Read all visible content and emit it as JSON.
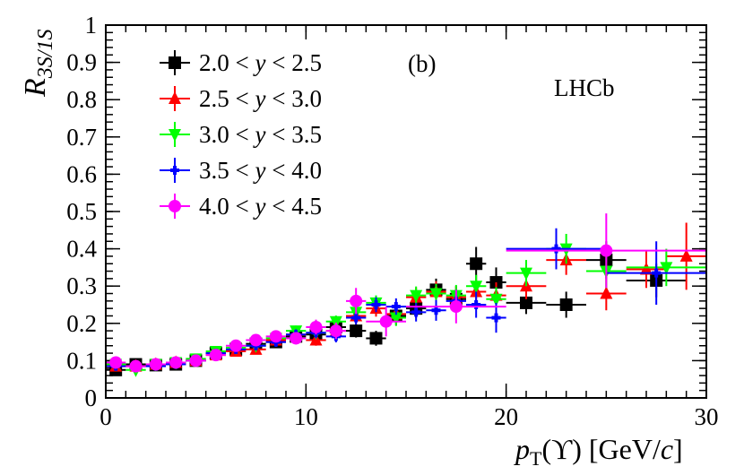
{
  "chart_data": {
    "type": "scatter",
    "panel_label": "(b)",
    "experiment": "LHCb",
    "xlabel": {
      "base": "p",
      "sub": "T",
      "rest": "(ϒ) [GeV/",
      "unit_italic": "c",
      "close": "]"
    },
    "ylabel": {
      "base": "R",
      "sub": "3S/1S"
    },
    "xlim": [
      0,
      30
    ],
    "ylim": [
      0,
      1
    ],
    "x_ticks": [
      "0",
      "10",
      "20",
      "30"
    ],
    "y_ticks": [
      "0",
      "0.1",
      "0.2",
      "0.3",
      "0.4",
      "0.5",
      "0.6",
      "0.7",
      "0.8",
      "0.9",
      "1"
    ],
    "series": [
      {
        "name": "2.0 < y < 2.5",
        "legend": {
          "pre": "2.0 < ",
          "var": "y",
          "post": " < 2.5"
        },
        "color": "#000000",
        "marker": "square",
        "points": [
          {
            "x": 0.5,
            "y": 0.075,
            "xerr": 0.5,
            "yerr": 0.015
          },
          {
            "x": 1.5,
            "y": 0.09,
            "xerr": 0.5,
            "yerr": 0.012
          },
          {
            "x": 2.5,
            "y": 0.088,
            "xerr": 0.5,
            "yerr": 0.012
          },
          {
            "x": 3.5,
            "y": 0.09,
            "xerr": 0.5,
            "yerr": 0.012
          },
          {
            "x": 4.5,
            "y": 0.1,
            "xerr": 0.5,
            "yerr": 0.012
          },
          {
            "x": 5.5,
            "y": 0.12,
            "xerr": 0.5,
            "yerr": 0.012
          },
          {
            "x": 6.5,
            "y": 0.13,
            "xerr": 0.5,
            "yerr": 0.012
          },
          {
            "x": 7.5,
            "y": 0.145,
            "xerr": 0.5,
            "yerr": 0.012
          },
          {
            "x": 8.5,
            "y": 0.15,
            "xerr": 0.5,
            "yerr": 0.013
          },
          {
            "x": 9.5,
            "y": 0.165,
            "xerr": 0.5,
            "yerr": 0.014
          },
          {
            "x": 10.5,
            "y": 0.17,
            "xerr": 0.5,
            "yerr": 0.015
          },
          {
            "x": 11.5,
            "y": 0.19,
            "xerr": 0.5,
            "yerr": 0.016
          },
          {
            "x": 12.5,
            "y": 0.18,
            "xerr": 0.5,
            "yerr": 0.018
          },
          {
            "x": 13.5,
            "y": 0.16,
            "xerr": 0.5,
            "yerr": 0.02
          },
          {
            "x": 14.5,
            "y": 0.22,
            "xerr": 0.5,
            "yerr": 0.025
          },
          {
            "x": 15.5,
            "y": 0.24,
            "xerr": 0.5,
            "yerr": 0.025
          },
          {
            "x": 16.5,
            "y": 0.29,
            "xerr": 0.5,
            "yerr": 0.03
          },
          {
            "x": 17.5,
            "y": 0.265,
            "xerr": 0.5,
            "yerr": 0.035
          },
          {
            "x": 18.5,
            "y": 0.36,
            "xerr": 0.5,
            "yerr": 0.045
          },
          {
            "x": 19.5,
            "y": 0.31,
            "xerr": 0.5,
            "yerr": 0.04
          },
          {
            "x": 21.0,
            "y": 0.255,
            "xerr": 1.0,
            "yerr": 0.03
          },
          {
            "x": 23.0,
            "y": 0.25,
            "xerr": 1.0,
            "yerr": 0.035
          },
          {
            "x": 25.0,
            "y": 0.37,
            "xerr": 1.0,
            "yerr": 0.05
          },
          {
            "x": 27.5,
            "y": 0.315,
            "xerr": 1.5,
            "yerr": 0.045
          }
        ]
      },
      {
        "name": "2.5 < y < 3.0",
        "legend": {
          "pre": "2.5 < ",
          "var": "y",
          "post": " < 3.0"
        },
        "color": "#ff0000",
        "marker": "triangle-up",
        "points": [
          {
            "x": 0.5,
            "y": 0.085,
            "xerr": 0.5,
            "yerr": 0.012
          },
          {
            "x": 1.5,
            "y": 0.085,
            "xerr": 0.5,
            "yerr": 0.011
          },
          {
            "x": 2.5,
            "y": 0.09,
            "xerr": 0.5,
            "yerr": 0.011
          },
          {
            "x": 3.5,
            "y": 0.095,
            "xerr": 0.5,
            "yerr": 0.011
          },
          {
            "x": 4.5,
            "y": 0.1,
            "xerr": 0.5,
            "yerr": 0.011
          },
          {
            "x": 5.5,
            "y": 0.115,
            "xerr": 0.5,
            "yerr": 0.011
          },
          {
            "x": 6.5,
            "y": 0.125,
            "xerr": 0.5,
            "yerr": 0.012
          },
          {
            "x": 7.5,
            "y": 0.13,
            "xerr": 0.5,
            "yerr": 0.012
          },
          {
            "x": 8.5,
            "y": 0.155,
            "xerr": 0.5,
            "yerr": 0.013
          },
          {
            "x": 9.5,
            "y": 0.17,
            "xerr": 0.5,
            "yerr": 0.014
          },
          {
            "x": 10.5,
            "y": 0.155,
            "xerr": 0.5,
            "yerr": 0.015
          },
          {
            "x": 11.5,
            "y": 0.18,
            "xerr": 0.5,
            "yerr": 0.016
          },
          {
            "x": 12.5,
            "y": 0.22,
            "xerr": 0.5,
            "yerr": 0.02
          },
          {
            "x": 13.5,
            "y": 0.24,
            "xerr": 0.5,
            "yerr": 0.022
          },
          {
            "x": 14.5,
            "y": 0.225,
            "xerr": 0.5,
            "yerr": 0.024
          },
          {
            "x": 15.5,
            "y": 0.27,
            "xerr": 0.5,
            "yerr": 0.026
          },
          {
            "x": 16.5,
            "y": 0.285,
            "xerr": 0.5,
            "yerr": 0.028
          },
          {
            "x": 17.5,
            "y": 0.27,
            "xerr": 0.5,
            "yerr": 0.03
          },
          {
            "x": 18.5,
            "y": 0.285,
            "xerr": 0.5,
            "yerr": 0.032
          },
          {
            "x": 19.5,
            "y": 0.275,
            "xerr": 0.5,
            "yerr": 0.035
          },
          {
            "x": 21.0,
            "y": 0.3,
            "xerr": 1.0,
            "yerr": 0.035
          },
          {
            "x": 23.0,
            "y": 0.37,
            "xerr": 1.0,
            "yerr": 0.04
          },
          {
            "x": 25.0,
            "y": 0.28,
            "xerr": 1.0,
            "yerr": 0.045
          },
          {
            "x": 27.0,
            "y": 0.345,
            "xerr": 1.0,
            "yerr": 0.05
          },
          {
            "x": 29.0,
            "y": 0.38,
            "xerr": 1.0,
            "yerr": 0.09
          }
        ]
      },
      {
        "name": "3.0 < y < 3.5",
        "legend": {
          "pre": "3.0 < ",
          "var": "y",
          "post": " < 3.5"
        },
        "color": "#00ff00",
        "marker": "triangle-down",
        "points": [
          {
            "x": 0.5,
            "y": 0.09,
            "xerr": 0.5,
            "yerr": 0.012
          },
          {
            "x": 1.5,
            "y": 0.075,
            "xerr": 0.5,
            "yerr": 0.011
          },
          {
            "x": 2.5,
            "y": 0.09,
            "xerr": 0.5,
            "yerr": 0.011
          },
          {
            "x": 3.5,
            "y": 0.095,
            "xerr": 0.5,
            "yerr": 0.011
          },
          {
            "x": 4.5,
            "y": 0.105,
            "xerr": 0.5,
            "yerr": 0.011
          },
          {
            "x": 5.5,
            "y": 0.125,
            "xerr": 0.5,
            "yerr": 0.011
          },
          {
            "x": 6.5,
            "y": 0.135,
            "xerr": 0.5,
            "yerr": 0.012
          },
          {
            "x": 7.5,
            "y": 0.14,
            "xerr": 0.5,
            "yerr": 0.012
          },
          {
            "x": 8.5,
            "y": 0.16,
            "xerr": 0.5,
            "yerr": 0.013
          },
          {
            "x": 9.5,
            "y": 0.18,
            "xerr": 0.5,
            "yerr": 0.014
          },
          {
            "x": 10.5,
            "y": 0.175,
            "xerr": 0.5,
            "yerr": 0.015
          },
          {
            "x": 11.5,
            "y": 0.205,
            "xerr": 0.5,
            "yerr": 0.016
          },
          {
            "x": 12.5,
            "y": 0.23,
            "xerr": 0.5,
            "yerr": 0.018
          },
          {
            "x": 13.5,
            "y": 0.255,
            "xerr": 0.5,
            "yerr": 0.02
          },
          {
            "x": 14.5,
            "y": 0.215,
            "xerr": 0.5,
            "yerr": 0.022
          },
          {
            "x": 15.5,
            "y": 0.275,
            "xerr": 0.5,
            "yerr": 0.024
          },
          {
            "x": 16.5,
            "y": 0.28,
            "xerr": 0.5,
            "yerr": 0.026
          },
          {
            "x": 17.5,
            "y": 0.275,
            "xerr": 0.5,
            "yerr": 0.028
          },
          {
            "x": 18.5,
            "y": 0.3,
            "xerr": 0.5,
            "yerr": 0.03
          },
          {
            "x": 19.5,
            "y": 0.265,
            "xerr": 0.5,
            "yerr": 0.032
          },
          {
            "x": 21.0,
            "y": 0.335,
            "xerr": 1.0,
            "yerr": 0.035
          },
          {
            "x": 23.0,
            "y": 0.4,
            "xerr": 1.0,
            "yerr": 0.04
          },
          {
            "x": 25.0,
            "y": 0.34,
            "xerr": 1.0,
            "yerr": 0.045
          },
          {
            "x": 28.0,
            "y": 0.35,
            "xerr": 2.0,
            "yerr": 0.05
          }
        ]
      },
      {
        "name": "3.5 < y < 4.0",
        "legend": {
          "pre": "3.5 < ",
          "var": "y",
          "post": " < 4.0"
        },
        "color": "#0000ff",
        "marker": "cross",
        "points": [
          {
            "x": 0.5,
            "y": 0.085,
            "xerr": 0.5,
            "yerr": 0.012
          },
          {
            "x": 1.5,
            "y": 0.085,
            "xerr": 0.5,
            "yerr": 0.011
          },
          {
            "x": 2.5,
            "y": 0.085,
            "xerr": 0.5,
            "yerr": 0.011
          },
          {
            "x": 3.5,
            "y": 0.09,
            "xerr": 0.5,
            "yerr": 0.011
          },
          {
            "x": 4.5,
            "y": 0.1,
            "xerr": 0.5,
            "yerr": 0.011
          },
          {
            "x": 5.5,
            "y": 0.12,
            "xerr": 0.5,
            "yerr": 0.011
          },
          {
            "x": 6.5,
            "y": 0.13,
            "xerr": 0.5,
            "yerr": 0.012
          },
          {
            "x": 7.5,
            "y": 0.14,
            "xerr": 0.5,
            "yerr": 0.012
          },
          {
            "x": 8.5,
            "y": 0.15,
            "xerr": 0.5,
            "yerr": 0.013
          },
          {
            "x": 9.5,
            "y": 0.17,
            "xerr": 0.5,
            "yerr": 0.014
          },
          {
            "x": 10.5,
            "y": 0.175,
            "xerr": 0.5,
            "yerr": 0.015
          },
          {
            "x": 11.5,
            "y": 0.165,
            "xerr": 0.5,
            "yerr": 0.016
          },
          {
            "x": 12.5,
            "y": 0.215,
            "xerr": 0.5,
            "yerr": 0.018
          },
          {
            "x": 13.5,
            "y": 0.25,
            "xerr": 0.5,
            "yerr": 0.02
          },
          {
            "x": 14.5,
            "y": 0.245,
            "xerr": 0.5,
            "yerr": 0.022
          },
          {
            "x": 15.5,
            "y": 0.23,
            "xerr": 0.5,
            "yerr": 0.025
          },
          {
            "x": 16.5,
            "y": 0.235,
            "xerr": 0.5,
            "yerr": 0.028
          },
          {
            "x": 17.5,
            "y": 0.26,
            "xerr": 0.5,
            "yerr": 0.03
          },
          {
            "x": 18.5,
            "y": 0.25,
            "xerr": 0.5,
            "yerr": 0.035
          },
          {
            "x": 19.5,
            "y": 0.215,
            "xerr": 0.5,
            "yerr": 0.04
          },
          {
            "x": 22.5,
            "y": 0.4,
            "xerr": 2.5,
            "yerr": 0.055
          },
          {
            "x": 27.5,
            "y": 0.335,
            "xerr": 2.5,
            "yerr": 0.085
          }
        ]
      },
      {
        "name": "4.0 < y < 4.5",
        "legend": {
          "pre": "4.0 < ",
          "var": "y",
          "post": " < 4.5"
        },
        "color": "#ff00ff",
        "marker": "circle",
        "points": [
          {
            "x": 0.5,
            "y": 0.095,
            "xerr": 0.5,
            "yerr": 0.012
          },
          {
            "x": 1.5,
            "y": 0.085,
            "xerr": 0.5,
            "yerr": 0.011
          },
          {
            "x": 2.5,
            "y": 0.09,
            "xerr": 0.5,
            "yerr": 0.011
          },
          {
            "x": 3.5,
            "y": 0.095,
            "xerr": 0.5,
            "yerr": 0.011
          },
          {
            "x": 4.5,
            "y": 0.1,
            "xerr": 0.5,
            "yerr": 0.011
          },
          {
            "x": 5.5,
            "y": 0.115,
            "xerr": 0.5,
            "yerr": 0.011
          },
          {
            "x": 6.5,
            "y": 0.14,
            "xerr": 0.5,
            "yerr": 0.012
          },
          {
            "x": 7.5,
            "y": 0.155,
            "xerr": 0.5,
            "yerr": 0.013
          },
          {
            "x": 8.5,
            "y": 0.165,
            "xerr": 0.5,
            "yerr": 0.014
          },
          {
            "x": 9.5,
            "y": 0.16,
            "xerr": 0.5,
            "yerr": 0.016
          },
          {
            "x": 10.5,
            "y": 0.19,
            "xerr": 0.5,
            "yerr": 0.02
          },
          {
            "x": 11.5,
            "y": 0.18,
            "xerr": 0.5,
            "yerr": 0.022
          },
          {
            "x": 12.5,
            "y": 0.26,
            "xerr": 0.5,
            "yerr": 0.035
          },
          {
            "x": 14.0,
            "y": 0.205,
            "xerr": 1.0,
            "yerr": 0.04
          },
          {
            "x": 17.5,
            "y": 0.245,
            "xerr": 2.5,
            "yerr": 0.045
          },
          {
            "x": 25.0,
            "y": 0.395,
            "xerr": 5.0,
            "yerr": 0.1
          }
        ]
      }
    ]
  }
}
